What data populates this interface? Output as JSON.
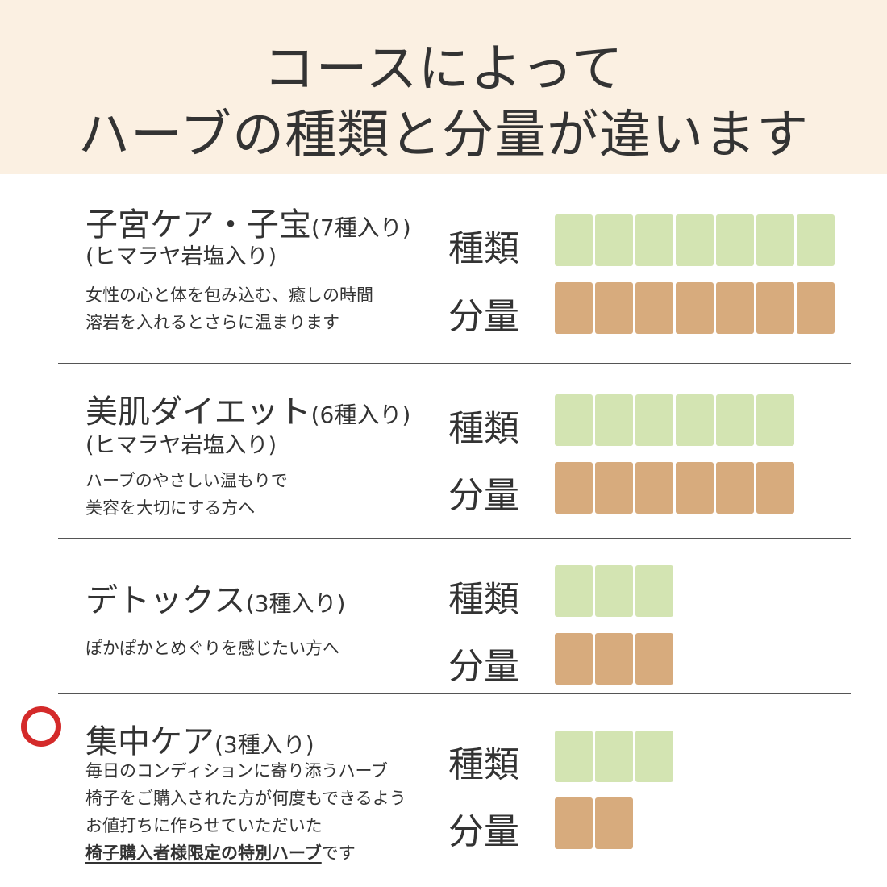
{
  "header": {
    "title_line1": "コースによって",
    "title_line2": "ハーブの種類と分量が違います"
  },
  "labels": {
    "kind": "種類",
    "amount": "分量"
  },
  "colors": {
    "header_bg": "#fbf0e2",
    "kind_block": "#d3e4b2",
    "amount_block": "#d7ab7d",
    "mark": "#d42a2a"
  },
  "courses": [
    {
      "name": "子宮ケア・子宝",
      "count": "(7種入り)",
      "sub": "(ヒマラヤ岩塩入り)",
      "desc": [
        "女性の心と体を包み込む、癒しの時間",
        "溶岩を入れるとさらに温まります"
      ],
      "kinds": 7,
      "amount": 7
    },
    {
      "name": "美肌ダイエット",
      "count": "(6種入り)",
      "sub": "(ヒマラヤ岩塩入り)",
      "desc": [
        "ハーブのやさしい温もりで",
        "美容を大切にする方へ"
      ],
      "kinds": 6,
      "amount": 6
    },
    {
      "name": "デトックス",
      "count": "(3種入り)",
      "desc": [
        "ぽかぽかとめぐりを感じたい方へ"
      ],
      "kinds": 3,
      "amount": 3
    },
    {
      "name": "集中ケア",
      "count": "(3種入り)",
      "desc": [
        "毎日のコンディションに寄り添うハーブ",
        "椅子をご購入された方が何度もできるよう",
        "お値打ちに作らせていただいた"
      ],
      "desc_highlight": "椅子購入者様限定の特別ハーブ",
      "desc_tail": "です",
      "kinds": 3,
      "amount": 2,
      "marked": true
    }
  ]
}
